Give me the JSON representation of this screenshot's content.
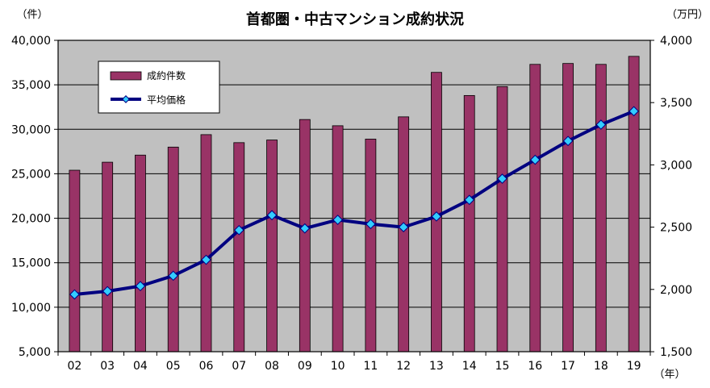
{
  "chart_data": {
    "type": "bar",
    "title": "首都圏・中古マンション成約状況",
    "categories": [
      "02",
      "03",
      "04",
      "05",
      "06",
      "07",
      "08",
      "09",
      "10",
      "11",
      "12",
      "13",
      "14",
      "15",
      "16",
      "17",
      "18",
      "19"
    ],
    "left_axis": {
      "unit": "（件）",
      "ylim": [
        5000,
        40000
      ],
      "ticks": [
        5000,
        10000,
        15000,
        20000,
        25000,
        30000,
        35000,
        40000
      ],
      "tick_labels": [
        "5,000",
        "10,000",
        "15,000",
        "20,000",
        "25,000",
        "30,000",
        "35,000",
        "40,000"
      ]
    },
    "right_axis": {
      "unit": "（万円）",
      "ylim": [
        1500,
        4000
      ],
      "ticks": [
        1500,
        2000,
        2500,
        3000,
        3500,
        4000
      ],
      "tick_labels": [
        "1,500",
        "2,000",
        "2,500",
        "3,000",
        "3,500",
        "4,000"
      ]
    },
    "x_unit": "（年）",
    "series": [
      {
        "name": "成約件数",
        "type": "bar",
        "axis": "left",
        "color": "#993366",
        "values": [
          25400,
          26300,
          27100,
          28000,
          29400,
          28500,
          28800,
          31100,
          30400,
          28900,
          31400,
          36400,
          33800,
          34800,
          37300,
          37400,
          37300,
          38200
        ]
      },
      {
        "name": "平均価格",
        "type": "line",
        "axis": "right",
        "color": "#000080",
        "marker_color": "#33ccff",
        "values": [
          1960,
          1986,
          2027,
          2110,
          2238,
          2476,
          2596,
          2490,
          2559,
          2525,
          2500,
          2586,
          2719,
          2889,
          3041,
          3192,
          3323,
          3431
        ]
      }
    ],
    "grid": true,
    "plot_background": "#c0c0c0",
    "legend_position": "top-left"
  }
}
